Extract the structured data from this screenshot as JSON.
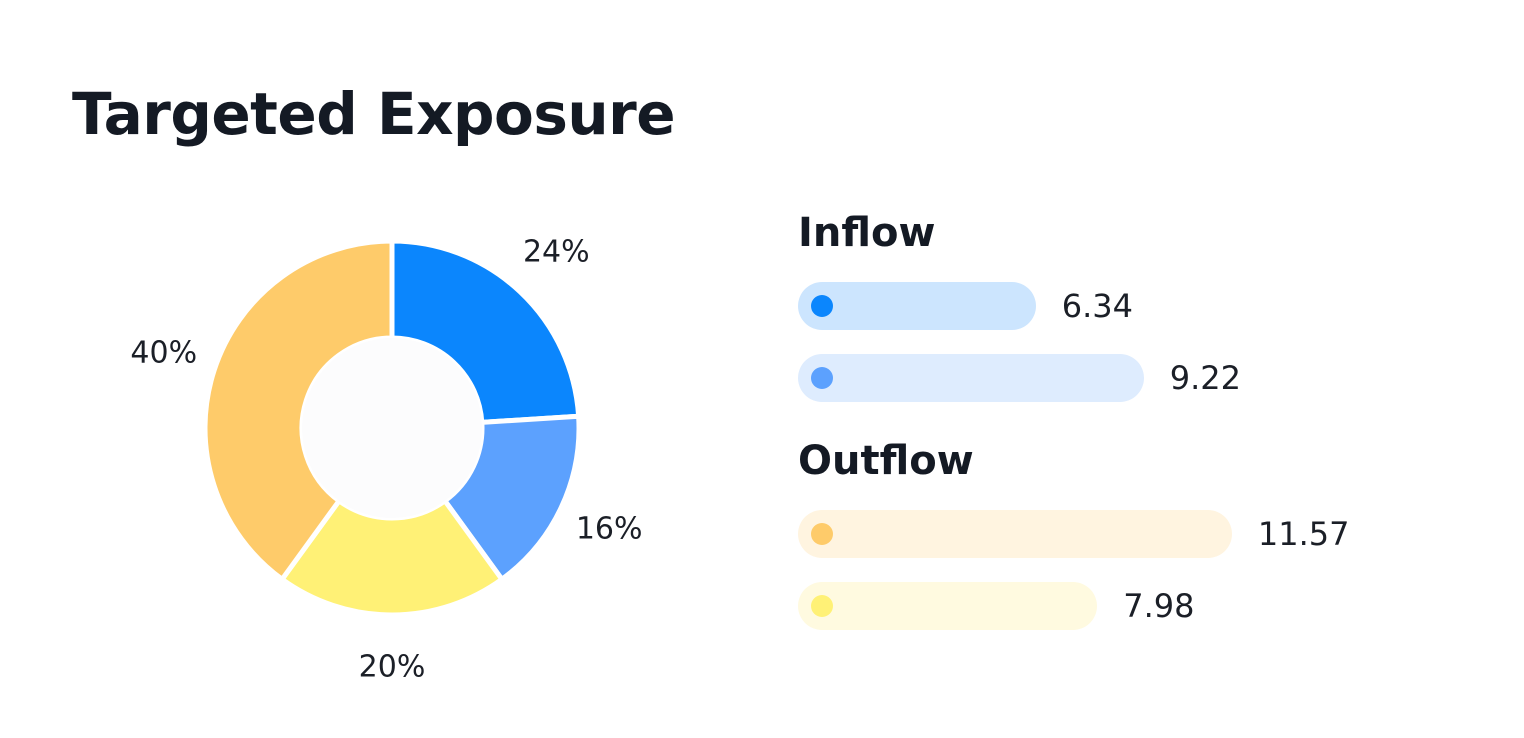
{
  "title": "Targeted Exposure",
  "chart_data": [
    {
      "type": "pie",
      "donut": true,
      "slices": [
        {
          "label": "24%",
          "value": 24,
          "color": "#0b86fd"
        },
        {
          "label": "16%",
          "value": 16,
          "color": "#5ca1fe"
        },
        {
          "label": "20%",
          "value": 20,
          "color": "#fff176"
        },
        {
          "label": "40%",
          "value": 40,
          "color": "#fecb6a"
        }
      ]
    },
    {
      "type": "bar",
      "orientation": "horizontal",
      "groups": [
        {
          "title": "Inflow",
          "bars": [
            {
              "value": 6.34,
              "label": "6.34",
              "color": "#0b86fd",
              "track_color": "#cce5fe"
            },
            {
              "value": 9.22,
              "label": "9.22",
              "color": "#5ca1fe",
              "track_color": "#deecfe"
            }
          ]
        },
        {
          "title": "Outflow",
          "bars": [
            {
              "value": 11.57,
              "label": "11.57",
              "color": "#fecb6a",
              "track_color": "#fff4e0"
            },
            {
              "value": 7.98,
              "label": "7.98",
              "color": "#fff176",
              "track_color": "#fffae0"
            }
          ]
        }
      ]
    }
  ]
}
